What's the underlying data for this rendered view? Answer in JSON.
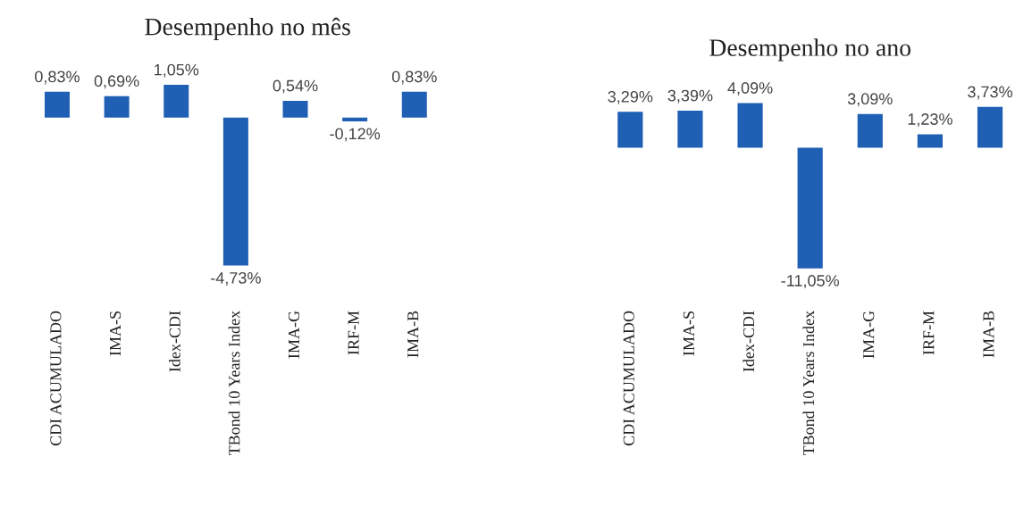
{
  "chart_data": [
    {
      "type": "bar",
      "title": "Desempenho no mês",
      "categories": [
        "CDI ACUMULADO",
        "IMA-S",
        "Idex-CDI",
        "TBond 10 Years Index",
        "IMA-G",
        "IRF-M",
        "IMA-B"
      ],
      "values": [
        0.83,
        0.69,
        1.05,
        -4.73,
        0.54,
        -0.12,
        0.83
      ],
      "value_labels": [
        "0,83%",
        "0,69%",
        "1,05%",
        "-4,73%",
        "0,54%",
        "-0,12%",
        "0,83%"
      ],
      "color": "#1f5fb4",
      "grid": false,
      "legend": false,
      "tick_labels": "x"
    },
    {
      "type": "bar",
      "title": "Desempenho no ano",
      "categories": [
        "CDI ACUMULADO",
        "IMA-S",
        "Idex-CDI",
        "TBond 10 Years Index",
        "IMA-G",
        "IRF-M",
        "IMA-B"
      ],
      "values": [
        3.29,
        3.39,
        4.09,
        -11.05,
        3.09,
        1.23,
        3.73
      ],
      "value_labels": [
        "3,29%",
        "3,39%",
        "4,09%",
        "-11,05%",
        "3,09%",
        "1,23%",
        "3,73%"
      ],
      "color": "#1f5fb4",
      "grid": false,
      "legend": false,
      "tick_labels": "x"
    }
  ]
}
